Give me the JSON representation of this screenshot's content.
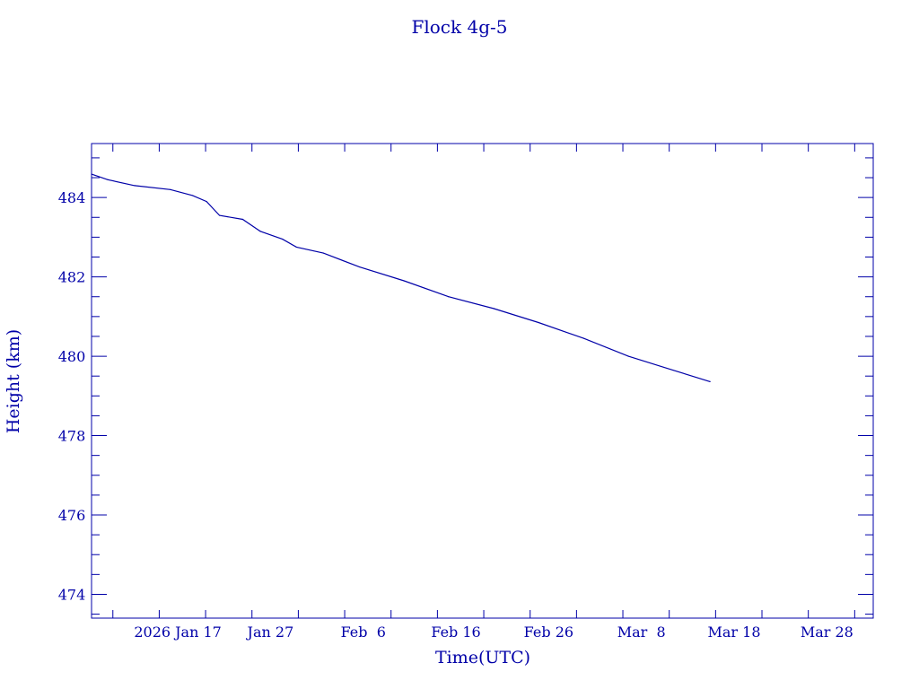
{
  "chart_data": {
    "type": "line",
    "title": "Flock 4g-5",
    "xlabel": "Time(UTC)",
    "ylabel": "Height (km)",
    "x_units": "day of year 2026",
    "xlim": [
      7.7,
      92.0
    ],
    "ylim": [
      473.4,
      485.36
    ],
    "x_ticks": [
      {
        "value": 17,
        "label": "2026 Jan 17"
      },
      {
        "value": 27,
        "label": "Jan 27"
      },
      {
        "value": 37,
        "label": "Feb  6"
      },
      {
        "value": 47,
        "label": "Feb 16"
      },
      {
        "value": 57,
        "label": "Feb 26"
      },
      {
        "value": 67,
        "label": "Mar  8"
      },
      {
        "value": 77,
        "label": "Mar 18"
      },
      {
        "value": 87,
        "label": "Mar 28"
      }
    ],
    "x_minor_step": 5,
    "y_ticks": [
      {
        "value": 474,
        "label": "474"
      },
      {
        "value": 476,
        "label": "476"
      },
      {
        "value": 478,
        "label": "478"
      },
      {
        "value": 480,
        "label": "480"
      },
      {
        "value": 482,
        "label": "482"
      },
      {
        "value": 484,
        "label": "484"
      }
    ],
    "y_minor_step": 0.5,
    "grid": false,
    "color": "#0000a8",
    "series": [
      {
        "name": "Flock 4g-5",
        "x": [
          7.7,
          9.45,
          12.35,
          16.2,
          18.6,
          20.1,
          21.5,
          24.0,
          25.9,
          28.3,
          29.8,
          32.7,
          36.6,
          41.4,
          46.2,
          51.1,
          55.9,
          60.8,
          65.6,
          70.4,
          74.4
        ],
        "y": [
          484.59,
          484.45,
          484.3,
          484.2,
          484.05,
          483.9,
          483.55,
          483.45,
          483.15,
          482.95,
          482.75,
          482.6,
          482.25,
          481.9,
          481.5,
          481.2,
          480.85,
          480.45,
          480.0,
          479.65,
          479.36
        ]
      }
    ]
  }
}
